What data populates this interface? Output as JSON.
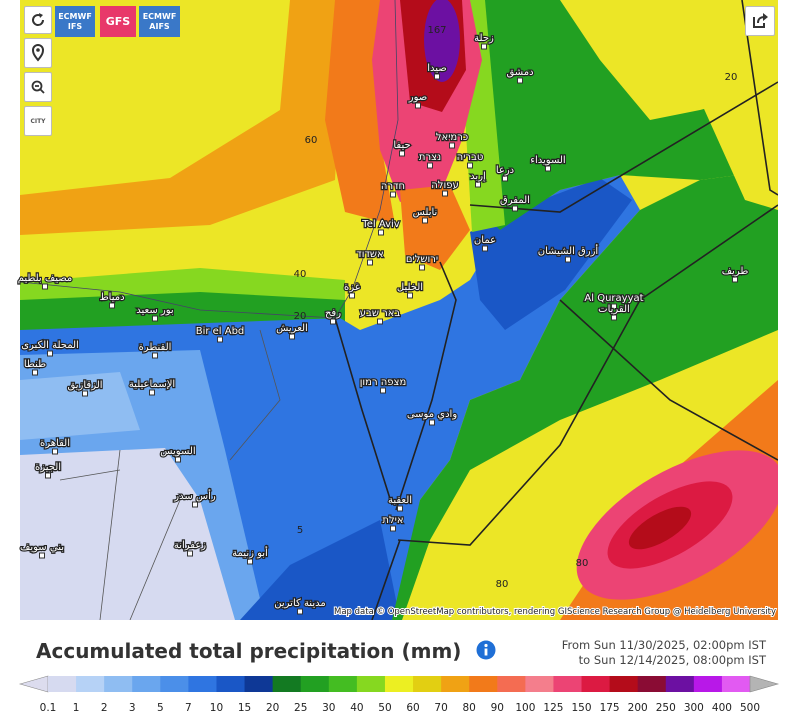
{
  "toolbar": {
    "models": [
      "ECMWF IFS",
      "GFS",
      "ECMWF AIFS"
    ],
    "city": "CITY"
  },
  "map": {
    "contours": [
      "167",
      "60",
      "40",
      "20",
      "20",
      "5",
      "80",
      "80"
    ],
    "places": [
      "زحلة",
      "صيدا",
      "صور",
      "دمشق",
      "حيفا",
      "כרמיאל",
      "נצרת",
      "טבריה",
      "עפולה",
      "חדרה",
      "درعا",
      "إربد",
      "السويداء",
      "المفرق",
      "Tel Aviv",
      "نابلس",
      "عمان",
      "אשדוד",
      "ירושלים",
      "أزرق الشيشان",
      "طريف",
      "غزة",
      "الخليل",
      "Al Qurayyat",
      "القريات",
      "مصيف بلطيم",
      "دمياط",
      "بور سعيد",
      "رفح",
      "באר שבע",
      "العريش",
      "Bir el Abd",
      "المحلة الكبرى",
      "القنطرة",
      "طنطا",
      "الزقازيق",
      "الإسماعيلية",
      "מצפה רמון",
      "وادي موسى",
      "القاهرة",
      "السويس",
      "الجيزة",
      "رأس سدر",
      "العقبة",
      "אילת",
      "زعفرانة",
      "أبو زنيمة",
      "بني سويف",
      "مدينة كاترين"
    ],
    "attribution": "Map data © OpenStreetMap contributors, rendering GIScience Research Group @ Heidelberg University"
  },
  "legend": {
    "title": "Accumulated total precipitation (mm)",
    "from": "From Sun 11/30/2025, 02:00pm IST",
    "to": "to Sun 12/14/2025, 08:00pm IST",
    "ticks": [
      0.1,
      1,
      2,
      3,
      5,
      7,
      10,
      15,
      20,
      25,
      30,
      40,
      50,
      60,
      70,
      80,
      90,
      100,
      125,
      150,
      175,
      200,
      250,
      300,
      400,
      500
    ],
    "colors": [
      "#dcdcee",
      "#d6daf0",
      "#b6d2f6",
      "#8fbdf2",
      "#6aa6ee",
      "#4b8fe9",
      "#2f75e1",
      "#1a57c6",
      "#0e3896",
      "#137a22",
      "#22a022",
      "#44bd22",
      "#86d820",
      "#ecef22",
      "#e2cf12",
      "#f0a214",
      "#f27a1a",
      "#f46c52",
      "#f47e8c",
      "#ec4474",
      "#dc1a42",
      "#b40c1a",
      "#8a0c34",
      "#6c10a2",
      "#b818e8",
      "#e25af2",
      "#f0a6f2",
      "#f8d6f8",
      "#e2e2e2",
      "#c4c4c4",
      "#b4b4b4"
    ]
  }
}
